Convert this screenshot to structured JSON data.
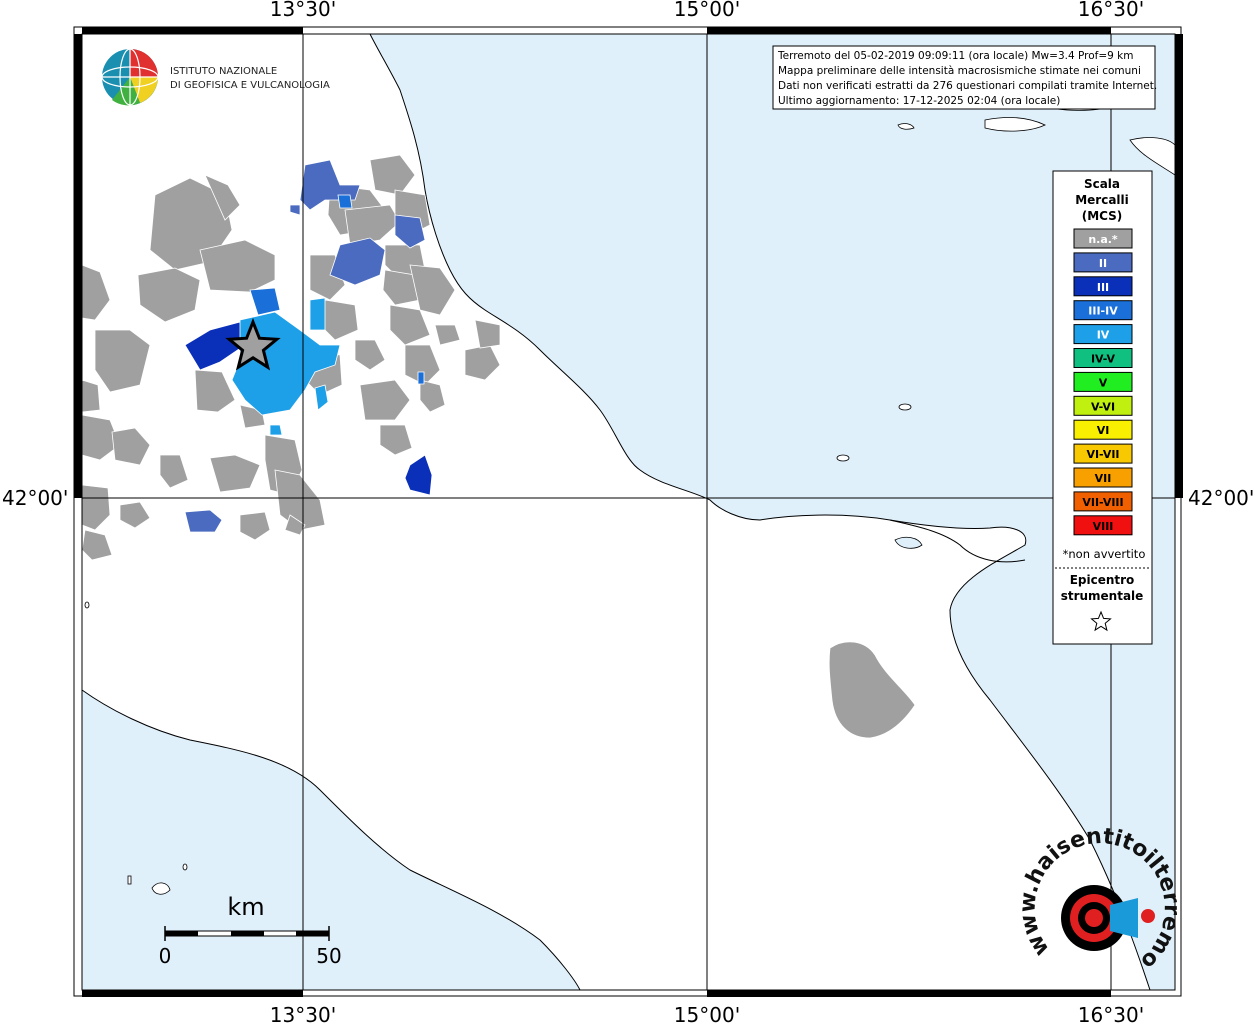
{
  "graticule": {
    "top_labels": [
      "13°30'",
      "15°00'",
      "16°30'"
    ],
    "bottom_labels": [
      "13°30'",
      "15°00'",
      "16°30'"
    ],
    "left_label": "42°00'",
    "right_label": "42°00'"
  },
  "institution": {
    "line1": "ISTITUTO NAZIONALE",
    "line2": "DI GEOFISICA E VULCANOLOGIA"
  },
  "info_box": {
    "line1": "Terremoto del 05-02-2019 09:09:11 (ora locale) Mw=3.4 Prof=9 km",
    "line2": "Mappa preliminare delle intensità macrosismiche stimate nei comuni",
    "line3": "Dati non verificati estratti da 276 questionari compilati tramite Internet.",
    "line4": "Ultimo aggiornamento: 17-12-2025 02:04 (ora locale)"
  },
  "legend": {
    "title1": "Scala",
    "title2": "Mercalli",
    "title3": "(MCS)",
    "classes": [
      {
        "label": "n.a.*",
        "color": "#a0a0a0"
      },
      {
        "label": "II",
        "color": "#4a6bbf"
      },
      {
        "label": "III",
        "color": "#0a2fb8"
      },
      {
        "label": "III-IV",
        "color": "#1a6fd8"
      },
      {
        "label": "IV",
        "color": "#1ea0e8"
      },
      {
        "label": "IV-V",
        "color": "#10c080"
      },
      {
        "label": "V",
        "color": "#20ee20"
      },
      {
        "label": "V-VI",
        "color": "#c0f010"
      },
      {
        "label": "VI",
        "color": "#f8f000"
      },
      {
        "label": "VI-VII",
        "color": "#f8c800"
      },
      {
        "label": "VII",
        "color": "#f8a000"
      },
      {
        "label": "VII-VIII",
        "color": "#f06000"
      },
      {
        "label": "VIII",
        "color": "#f01010"
      }
    ],
    "footnote": "*non avvertito",
    "epicenter_line1": "Epicentro",
    "epicenter_line2": "strumentale"
  },
  "scale_bar": {
    "unit": "km",
    "start": "0",
    "end": "50"
  },
  "watermark": {
    "text": "www.haisentitoilterremoto.it"
  },
  "colors": {
    "sea": "#dff0fb",
    "land": "#ffffff",
    "not_felt": "#a0a0a0",
    "intensity_II": "#4a6bbf",
    "intensity_III": "#0a2fb8",
    "intensity_III_IV": "#1a6fd8",
    "intensity_IV": "#1ea0e8",
    "epicenter": "#a0a0a0"
  },
  "epicenter_icon": "star-icon"
}
